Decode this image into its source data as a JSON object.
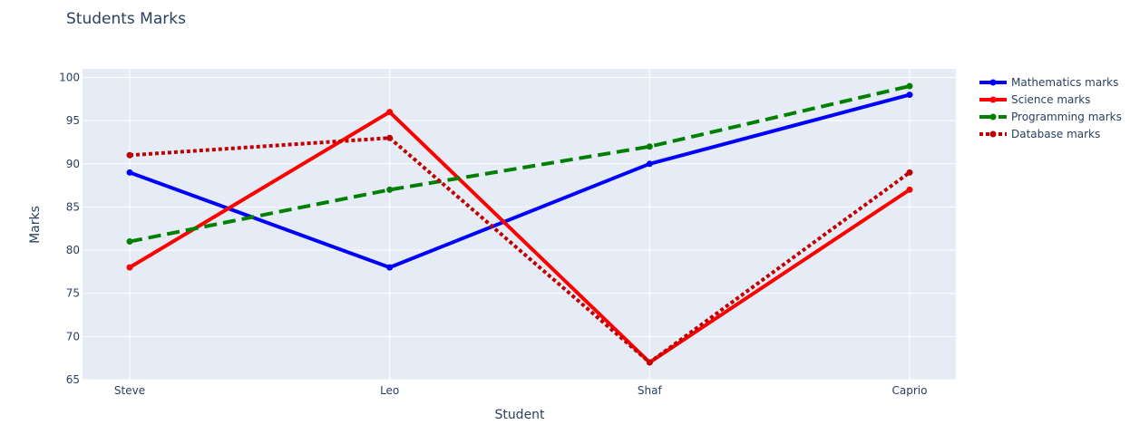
{
  "chart_data": {
    "type": "line",
    "title": "Students Marks",
    "xlabel": "Student",
    "ylabel": "Marks",
    "categories": [
      "Steve",
      "Leo",
      "Shaf",
      "Caprio"
    ],
    "ylim": [
      65,
      101
    ],
    "yticks": [
      65,
      70,
      75,
      80,
      85,
      90,
      95,
      100
    ],
    "grid": true,
    "legend_position": "top-right",
    "plot_background": "#e5ecf6",
    "series": [
      {
        "name": "Mathematics marks",
        "values": [
          89,
          78,
          90,
          98
        ],
        "color": "#0000ff",
        "dash": "solid"
      },
      {
        "name": "Science marks",
        "values": [
          78,
          96,
          67,
          87
        ],
        "color": "#ff0000",
        "dash": "solid"
      },
      {
        "name": "Programming marks",
        "values": [
          81,
          87,
          92,
          99
        ],
        "color": "#008000",
        "dash": "dash"
      },
      {
        "name": "Database marks",
        "values": [
          91,
          93,
          67,
          89
        ],
        "color": "#c00000",
        "dash": "dot"
      }
    ]
  }
}
